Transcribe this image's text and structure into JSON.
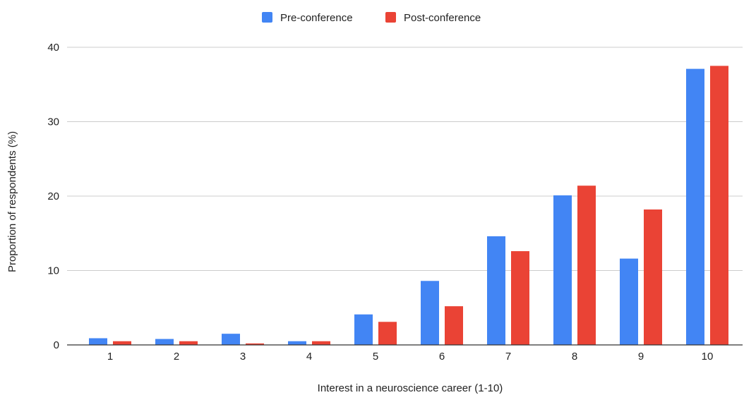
{
  "chart_data": {
    "type": "bar",
    "title": "",
    "xlabel": "Interest in a neuroscience career (1-10)",
    "ylabel": "Proportion of respondents (%)",
    "categories": [
      "1",
      "2",
      "3",
      "4",
      "5",
      "6",
      "7",
      "8",
      "9",
      "10"
    ],
    "series": [
      {
        "name": "Pre-conference",
        "color": "#4285f4",
        "values": [
          0.9,
          0.8,
          1.5,
          0.5,
          4.1,
          8.6,
          14.6,
          20.1,
          11.6,
          37.1
        ]
      },
      {
        "name": "Post-conference",
        "color": "#ea4335",
        "values": [
          0.5,
          0.5,
          0.2,
          0.5,
          3.1,
          5.2,
          12.6,
          21.4,
          18.2,
          37.5
        ]
      }
    ],
    "ylim": [
      0,
      40
    ],
    "yticks": [
      0,
      10,
      20,
      30,
      40
    ],
    "grid": true,
    "legend": "top-center"
  }
}
